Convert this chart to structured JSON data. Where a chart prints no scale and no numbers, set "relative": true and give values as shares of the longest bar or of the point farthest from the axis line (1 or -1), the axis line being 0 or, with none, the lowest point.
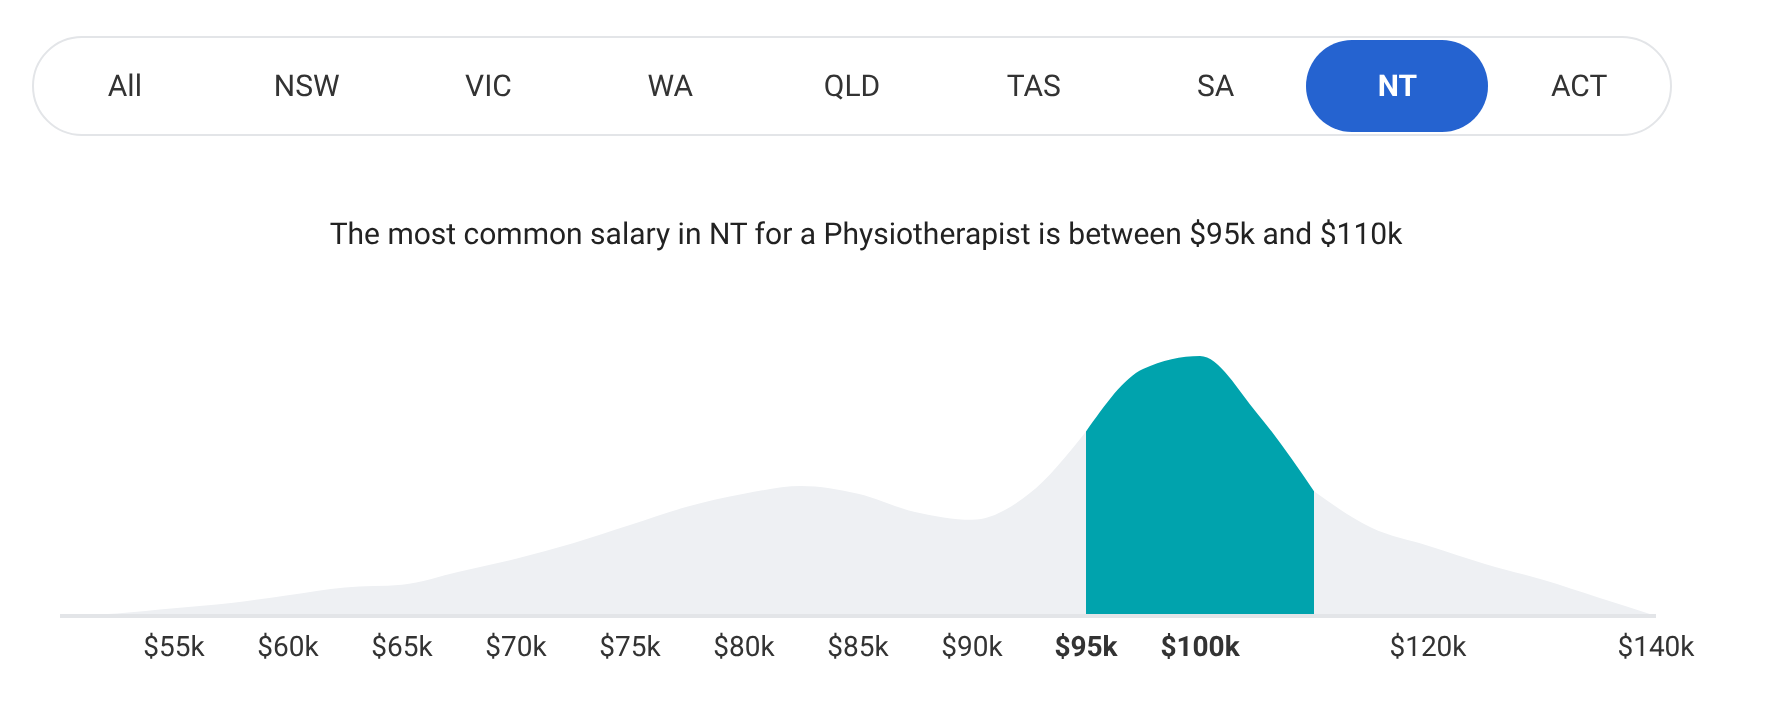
{
  "chart_data": {
    "type": "area",
    "relative": true,
    "title": "The most common salary in NT for a Physiotherapist is between $95k and $110k",
    "annotations": [
      "All",
      "NSW",
      "VIC",
      "WA",
      "QLD",
      "TAS",
      "SA",
      "NT",
      "ACT"
    ],
    "categories": [
      null,
      null,
      "$55k",
      null,
      "$60k",
      null,
      "$65k",
      null,
      "$70k",
      null,
      "$75k",
      null,
      "$80k",
      null,
      "$85k",
      null,
      "$90k",
      null,
      "$95k",
      null,
      "$100k",
      null,
      null,
      null,
      "$120k",
      null,
      null,
      null,
      "$140k"
    ],
    "series": [
      {
        "color": "#eef0f3",
        "values": [
          0,
          0.01,
          0.03,
          0.05,
          0.08,
          0.11,
          0.12,
          0.17,
          0.22,
          0.28,
          0.35,
          0.42,
          0.47,
          0.5,
          0.47,
          0.4,
          0.37,
          0.47,
          0.71,
          null,
          null,
          null,
          0.48,
          0.34,
          0.27,
          0.2,
          0.14,
          0.07,
          0
        ]
      },
      {
        "color": "#00a3ad",
        "values": [
          null,
          null,
          null,
          null,
          null,
          null,
          null,
          null,
          null,
          null,
          null,
          null,
          null,
          null,
          null,
          null,
          null,
          null,
          0.71,
          0.95,
          1.0,
          0.78,
          0.48,
          null,
          null,
          null,
          null,
          null,
          null
        ]
      }
    ],
    "grid": false,
    "legend": false
  }
}
